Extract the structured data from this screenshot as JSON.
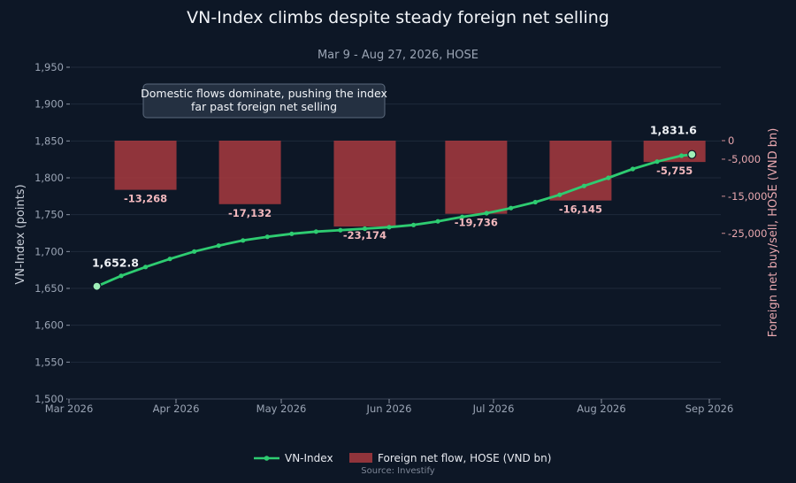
{
  "chart_data": {
    "type": "line+bar",
    "title": "VN-Index climbs despite steady foreign net selling",
    "subtitle": "Mar 9 - Aug 27, 2026, HOSE",
    "ylabel": "VN-Index (points)",
    "y2label": "Foreign net buy/sell, HOSE (VND bn)",
    "ylim": [
      1500,
      1950
    ],
    "yticks": [
      "1,500",
      "1,550",
      "1,600",
      "1,650",
      "1,700",
      "1,750",
      "1,800",
      "1,850",
      "1,900",
      "1,950"
    ],
    "y2ticks": [
      "0",
      "-5,000",
      "-15,000",
      "-25,000"
    ],
    "xticks": [
      "Mar 2026",
      "Apr 2026",
      "May 2026",
      "Jun 2026",
      "Jul 2026",
      "Aug 2026",
      "Sep 2026"
    ],
    "grid": true,
    "legend_position": "bottom",
    "series": [
      {
        "name": "VN-Index",
        "type": "line",
        "color": "#2ecc71",
        "x": [
          "2026-03-09",
          "2026-03-16",
          "2026-03-23",
          "2026-03-30",
          "2026-04-06",
          "2026-04-13",
          "2026-04-20",
          "2026-04-27",
          "2026-05-04",
          "2026-05-11",
          "2026-05-18",
          "2026-05-25",
          "2026-06-01",
          "2026-06-08",
          "2026-06-15",
          "2026-06-22",
          "2026-06-29",
          "2026-07-06",
          "2026-07-13",
          "2026-07-20",
          "2026-07-27",
          "2026-08-03",
          "2026-08-10",
          "2026-08-17",
          "2026-08-24",
          "2026-08-27"
        ],
        "y": [
          1652.8,
          1667,
          1679,
          1690,
          1700,
          1708,
          1715,
          1720,
          1724,
          1727,
          1729,
          1731,
          1733,
          1736,
          1741,
          1747,
          1752,
          1759,
          1767,
          1777,
          1789,
          1800,
          1812,
          1822,
          1830,
          1831.6
        ]
      },
      {
        "name": "Foreign net flow, HOSE (VND bn)",
        "type": "bar",
        "color": "#a83a40",
        "x": [
          "2026-03-23",
          "2026-04-22",
          "2026-05-25",
          "2026-06-26",
          "2026-07-26",
          "2026-08-22"
        ],
        "values": [
          -13268,
          -17132,
          -23174,
          -19736,
          -16145,
          -5755
        ],
        "labels": [
          "-13,268",
          "-17,132",
          "-23,174",
          "-19,736",
          "-16,145",
          "-5,755"
        ]
      }
    ],
    "annotations": [
      {
        "text_line1": "Domestic flows dominate, pushing the index",
        "text_line2": "far past foreign net selling"
      }
    ],
    "endpoint_labels": {
      "start": "1,652.8",
      "end": "1,831.6"
    }
  },
  "legend": {
    "line_label": "VN-Index",
    "bar_label": "Foreign net flow, HOSE (VND bn)"
  },
  "source": "Source: Investify",
  "colors": {
    "background": "#0d1726",
    "line": "#2ecc71",
    "bar": "#a83a40",
    "grid": "#1e2a3b"
  }
}
